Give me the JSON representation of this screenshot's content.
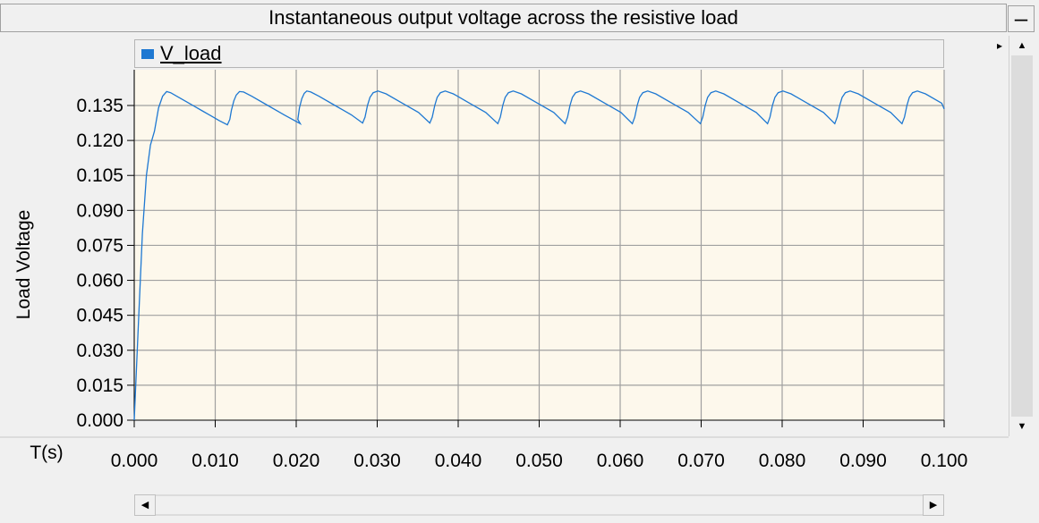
{
  "window": {
    "title": "Instantaneous output voltage across the resistive load",
    "minimize_glyph": "–"
  },
  "legend": {
    "label": "V_load",
    "color": "#1e78d2",
    "expand_glyph": "▸"
  },
  "scroll": {
    "up_glyph": "▲",
    "down_glyph": "▼",
    "left_glyph": "◀",
    "right_glyph": "▶"
  },
  "chart_data": {
    "type": "line",
    "title": "Instantaneous output voltage across the resistive load",
    "xlabel": "T(s)",
    "ylabel": "Load Voltage",
    "xlim": [
      0,
      0.1
    ],
    "ylim": [
      0,
      0.14
    ],
    "x_ticks": [
      "0.000",
      "0.010",
      "0.020",
      "0.030",
      "0.040",
      "0.050",
      "0.060",
      "0.070",
      "0.080",
      "0.090",
      "0.100"
    ],
    "y_ticks": [
      "0.000",
      "0.015",
      "0.030",
      "0.045",
      "0.060",
      "0.075",
      "0.090",
      "0.105",
      "0.120",
      "0.135"
    ],
    "grid": true,
    "background": "#fdf8ec",
    "grid_color": "#a0a0a0",
    "series": [
      {
        "name": "V_load",
        "color": "#1e78d2",
        "x": [
          0.0,
          0.0005,
          0.001,
          0.0015,
          0.002,
          0.0025,
          0.003,
          0.0035,
          0.004,
          0.0045,
          0.0055,
          0.0065,
          0.0075,
          0.0085,
          0.0095,
          0.0105,
          0.0115,
          0.0118,
          0.012,
          0.0123,
          0.0126,
          0.013,
          0.0135,
          0.0145,
          0.0165,
          0.0185,
          0.0205,
          0.0202,
          0.0204,
          0.0207,
          0.021,
          0.0213,
          0.0218,
          0.0228,
          0.0248,
          0.0268,
          0.0282,
          0.0285,
          0.0288,
          0.0291,
          0.0295,
          0.0301,
          0.0311,
          0.0331,
          0.0351,
          0.0365,
          0.0368,
          0.0371,
          0.0374,
          0.0378,
          0.0384,
          0.0394,
          0.0414,
          0.0434,
          0.0449,
          0.0452,
          0.0455,
          0.0458,
          0.0462,
          0.0468,
          0.0478,
          0.0498,
          0.0518,
          0.0532,
          0.0535,
          0.0538,
          0.0541,
          0.0545,
          0.0551,
          0.0561,
          0.0581,
          0.0601,
          0.0615,
          0.0618,
          0.0621,
          0.0624,
          0.0628,
          0.0634,
          0.0644,
          0.0664,
          0.0684,
          0.0699,
          0.0702,
          0.0705,
          0.0708,
          0.0712,
          0.0718,
          0.0728,
          0.0748,
          0.0768,
          0.0782,
          0.0785,
          0.0788,
          0.0791,
          0.0795,
          0.0801,
          0.0811,
          0.0831,
          0.0851,
          0.0865,
          0.0868,
          0.0871,
          0.0874,
          0.0878,
          0.0884,
          0.0894,
          0.0914,
          0.0934,
          0.0948,
          0.0951,
          0.0954,
          0.0957,
          0.0961,
          0.0967,
          0.0977,
          0.0997,
          0.1
        ],
        "y": [
          0.0,
          0.04,
          0.08,
          0.105,
          0.118,
          0.124,
          0.134,
          0.139,
          0.141,
          0.1405,
          0.1385,
          0.1365,
          0.1345,
          0.1325,
          0.1305,
          0.1285,
          0.1267,
          0.129,
          0.133,
          0.137,
          0.1395,
          0.141,
          0.1408,
          0.139,
          0.135,
          0.131,
          0.1272,
          0.129,
          0.134,
          0.138,
          0.1402,
          0.1412,
          0.1408,
          0.139,
          0.135,
          0.131,
          0.1275,
          0.13,
          0.135,
          0.1385,
          0.1405,
          0.1412,
          0.14,
          0.136,
          0.132,
          0.1275,
          0.13,
          0.135,
          0.1385,
          0.1405,
          0.1412,
          0.14,
          0.136,
          0.132,
          0.1272,
          0.13,
          0.135,
          0.1385,
          0.1405,
          0.1412,
          0.14,
          0.136,
          0.132,
          0.1272,
          0.13,
          0.135,
          0.1385,
          0.1405,
          0.1412,
          0.14,
          0.136,
          0.132,
          0.1272,
          0.13,
          0.135,
          0.1385,
          0.1405,
          0.1412,
          0.14,
          0.136,
          0.132,
          0.1272,
          0.13,
          0.135,
          0.1385,
          0.1405,
          0.1412,
          0.14,
          0.136,
          0.132,
          0.1272,
          0.13,
          0.135,
          0.1385,
          0.1405,
          0.1412,
          0.14,
          0.136,
          0.132,
          0.1272,
          0.13,
          0.135,
          0.1385,
          0.1405,
          0.1412,
          0.14,
          0.136,
          0.132,
          0.1272,
          0.13,
          0.135,
          0.1385,
          0.1405,
          0.1412,
          0.14,
          0.136,
          0.1335
        ]
      }
    ]
  }
}
